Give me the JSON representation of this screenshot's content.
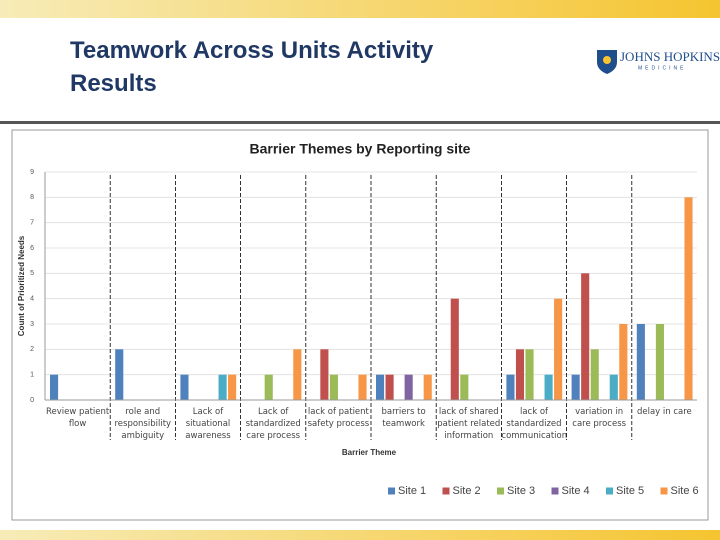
{
  "header": {
    "title": "Teamwork Across Units Activity Results",
    "logo_name": "JOHNS HOPKINS",
    "logo_sub": "MEDICINE"
  },
  "chart_data": {
    "type": "bar",
    "title": "Barrier Themes by Reporting site",
    "x_label": "Barrier Theme",
    "y_label": "Count of Prioritized Needs",
    "categories": [
      "Review patient flow",
      "role and responsibility ambiguity",
      "Lack of situational awareness",
      "Lack of standardized care process",
      "lack of patient safety process",
      "barriers to teamwork",
      "lack of shared patient related information",
      "lack of standardized communication",
      "variation in care process",
      "delay in care"
    ],
    "series": [
      {
        "name": "Site 1",
        "color": "#4f81bd",
        "values": [
          1,
          2,
          1,
          0,
          0,
          1,
          0,
          1,
          1,
          3
        ]
      },
      {
        "name": "Site 2",
        "color": "#c0504d",
        "values": [
          0,
          0,
          0,
          0,
          2,
          1,
          4,
          2,
          5,
          0
        ]
      },
      {
        "name": "Site 3",
        "color": "#9bbb59",
        "values": [
          0,
          0,
          0,
          1,
          1,
          0,
          1,
          2,
          2,
          3
        ]
      },
      {
        "name": "Site 4",
        "color": "#8064a2",
        "values": [
          0,
          0,
          0,
          0,
          0,
          1,
          0,
          0,
          0,
          0
        ]
      },
      {
        "name": "Site 5",
        "color": "#4bacc6",
        "values": [
          0,
          0,
          1,
          0,
          0,
          0,
          0,
          1,
          1,
          0
        ]
      },
      {
        "name": "Site 6",
        "color": "#f79646",
        "values": [
          0,
          0,
          1,
          2,
          1,
          1,
          0,
          4,
          3,
          8
        ]
      }
    ],
    "ylim": [
      0,
      9
    ],
    "yticks": [
      0,
      1,
      2,
      3,
      4,
      5,
      6,
      7,
      8,
      9
    ],
    "grid": true,
    "legend": "bottom"
  }
}
